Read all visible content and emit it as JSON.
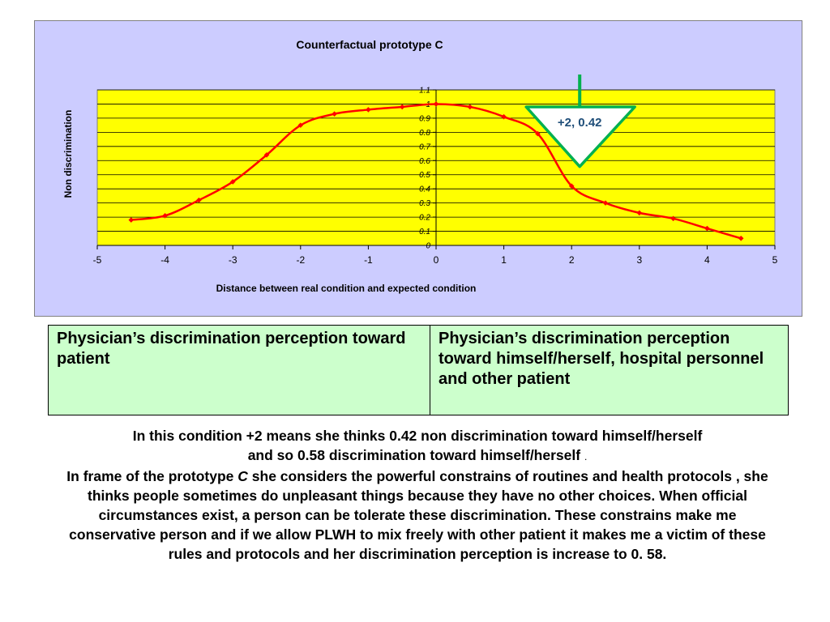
{
  "chart_data": {
    "type": "line",
    "title": "Counterfactual prototype C",
    "xlabel": "Distance between real condition and expected condition",
    "ylabel": "Non discrimination",
    "xlim": [
      -5,
      5
    ],
    "ylim": [
      0,
      1.1
    ],
    "xticks": [
      "-5",
      "-4",
      "-3",
      "-2",
      "-1",
      "0",
      "1",
      "2",
      "3",
      "4",
      "5"
    ],
    "yticks": [
      "0",
      "0.1",
      "0.2",
      "0.3",
      "0.4",
      "0.5",
      "0.6",
      "0.7",
      "0.8",
      "0.9",
      "1",
      "1.1"
    ],
    "grid": true,
    "legend": "none",
    "plot_background": "#ffff00",
    "frame_background": "#ccccff",
    "line_color": "#ff0000",
    "x": [
      -4.5,
      -4,
      -3.5,
      -3,
      -2.5,
      -2,
      -1.5,
      -1,
      -0.5,
      0,
      0.5,
      1,
      1.5,
      2,
      2.5,
      3,
      3.5,
      4,
      4.5
    ],
    "y": [
      0.18,
      0.21,
      0.32,
      0.45,
      0.64,
      0.85,
      0.93,
      0.96,
      0.98,
      1.0,
      0.98,
      0.91,
      0.79,
      0.42,
      0.3,
      0.23,
      0.19,
      0.12,
      0.05
    ],
    "annotation": {
      "text": "+2, 0.42",
      "x": 2,
      "y": 0.42,
      "color": "#00b050"
    }
  },
  "table": {
    "left_cell": "Physician’s discrimination perception toward patient",
    "right_cell": "Physician’s discrimination perception toward himself/herself, hospital personnel and other patient"
  },
  "description": {
    "line1": "In this condition +2 means she thinks 0.42 non discrimination toward himself/herself",
    "line2": "and so 0.58 discrimination toward himself/herself",
    "line2_end": ".",
    "line3_before": "In frame of the prototype ",
    "line3_italic": "C",
    "line3_after": " she considers the powerful constrains of routines and health protocols , she thinks  people sometimes do unpleasant things because they have no other choices. When official circumstances exist, a person can be tolerate these  discrimination. These constrains make me conservative person and if we allow PLWH to mix freely with other patient it makes me a victim of these rules and protocols and her discrimination perception is increase to  0. 58."
  }
}
